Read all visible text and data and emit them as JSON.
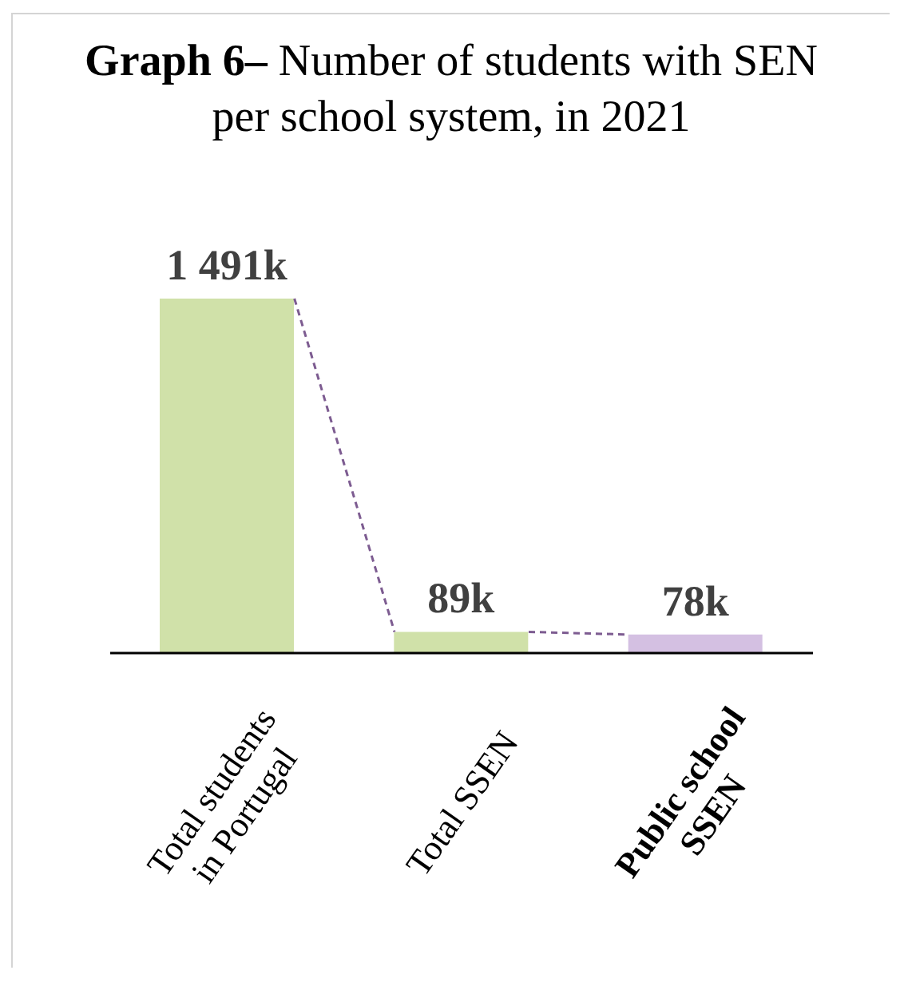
{
  "chart_data": {
    "type": "bar",
    "title": "Graph 6– Number of students with SEN per school system, in 2021",
    "categories": [
      "Total students in Portugal",
      "Total SSEN",
      "Public school SSEN"
    ],
    "values": [
      1491,
      89,
      78
    ],
    "value_labels": [
      "1 491k",
      "89k",
      "78k"
    ],
    "colors": [
      "#d0e1a9",
      "#d0e1a9",
      "#d4c0e2"
    ]
  }
}
